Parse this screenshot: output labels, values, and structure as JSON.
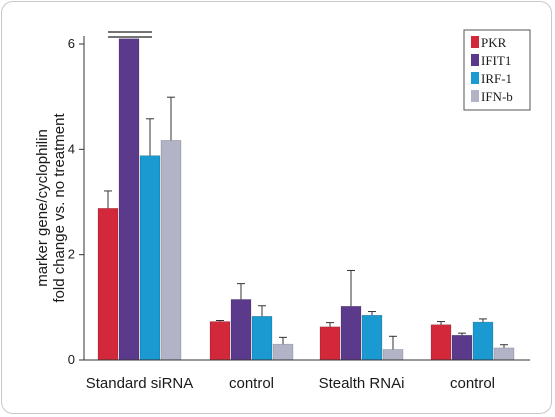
{
  "chart_data": {
    "type": "bar",
    "title": "",
    "xlabel": "",
    "ylabel_lines": [
      "marker gene/cyclophilin",
      "fold change vs. no treatment"
    ],
    "ylim": [
      0,
      6.2
    ],
    "yticks": [
      0,
      2,
      4,
      6
    ],
    "categories": [
      "Standard siRNA",
      "control",
      "Stealth RNAi",
      "control"
    ],
    "legend_position": "top-right",
    "series": [
      {
        "name": "PKR",
        "color": "#d2283a",
        "values": [
          2.88,
          0.73,
          0.63,
          0.67
        ],
        "errors": [
          0.33,
          0.02,
          0.08,
          0.06
        ]
      },
      {
        "name": "IFIT1",
        "color": "#5b3a8c",
        "values": [
          6.1,
          1.15,
          1.02,
          0.47
        ],
        "errors": [
          0,
          0.3,
          0.68,
          0.04
        ]
      },
      {
        "name": "IRF-1",
        "color": "#1a9ad0",
        "values": [
          3.88,
          0.83,
          0.85,
          0.72
        ],
        "errors": [
          0.7,
          0.2,
          0.07,
          0.06
        ]
      },
      {
        "name": "IFN-b",
        "color": "#b3b3c8",
        "values": [
          4.17,
          0.3,
          0.2,
          0.23
        ],
        "errors": [
          0.82,
          0.13,
          0.25,
          0.06
        ]
      }
    ]
  }
}
